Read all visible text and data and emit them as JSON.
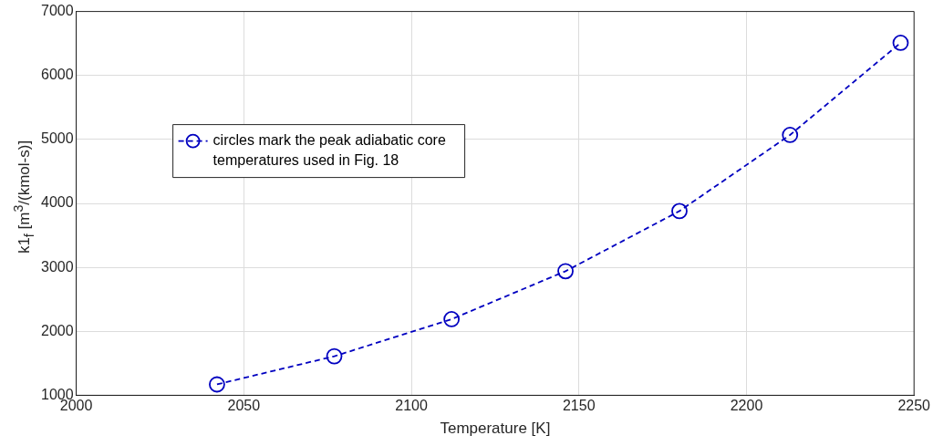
{
  "chart_data": {
    "type": "line",
    "xlabel": "Temperature [K]",
    "ylabel": "k1$_{f}$ [m$^{3}$/(kmol-s)]",
    "x": [
      2042,
      2077,
      2112,
      2146,
      2180,
      2213,
      2246
    ],
    "series": [
      {
        "name": "circles mark the peak adiabatic core temperatures used in Fig. 18",
        "color": "#0000c0",
        "values": [
          1170,
          1610,
          2190,
          2940,
          3880,
          5070,
          6510
        ]
      }
    ],
    "xlim": [
      2000,
      2250
    ],
    "xticks": [
      2000,
      2050,
      2100,
      2150,
      2200,
      2250
    ],
    "ylim": [
      1000,
      7000
    ],
    "yticks": [
      1000,
      2000,
      3000,
      4000,
      5000,
      6000,
      7000
    ],
    "grid": true,
    "legend": "top left",
    "marker": "circle",
    "line_style": "dashed"
  }
}
